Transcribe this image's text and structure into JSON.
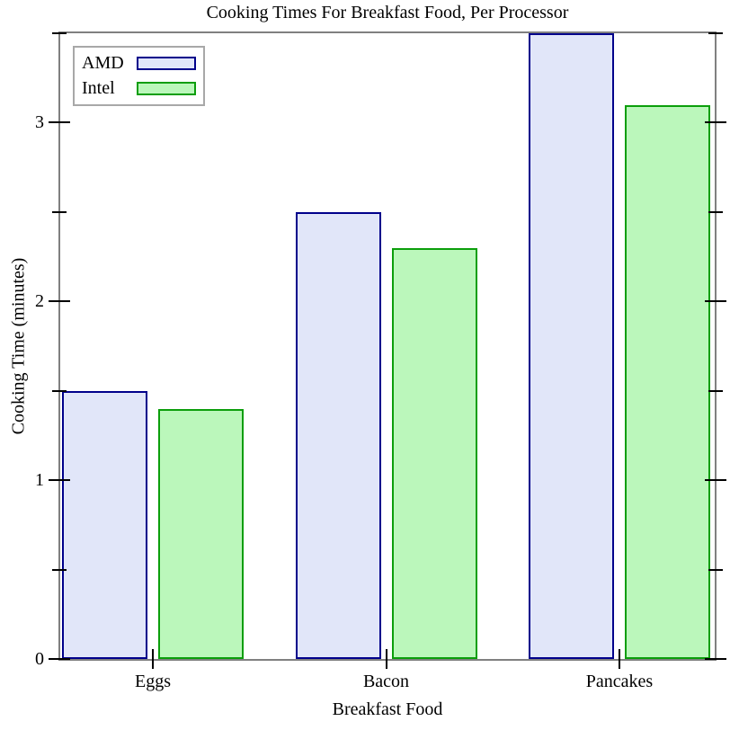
{
  "chart_data": {
    "type": "bar",
    "title": "Cooking Times For Breakfast Food, Per Processor",
    "xlabel": "Breakfast Food",
    "ylabel": "Cooking Time (minutes)",
    "categories": [
      "Eggs",
      "Bacon",
      "Pancakes"
    ],
    "series": [
      {
        "name": "AMD",
        "values": [
          1.5,
          2.5,
          3.5
        ],
        "fill": "#e1e6f9",
        "border": "#00008b"
      },
      {
        "name": "Intel",
        "values": [
          1.4,
          2.3,
          3.1
        ],
        "fill": "#bbf7bb",
        "border": "#0b9e0b"
      }
    ],
    "ylim": [
      0,
      3.5
    ],
    "yticks_major": [
      0,
      1,
      2,
      3
    ],
    "yticks_minor": [
      0.5,
      1.5,
      2.5,
      3.5
    ],
    "grid": false,
    "legend_position": "top-left",
    "frame_color": "#808080",
    "tick_color": "#000000"
  }
}
